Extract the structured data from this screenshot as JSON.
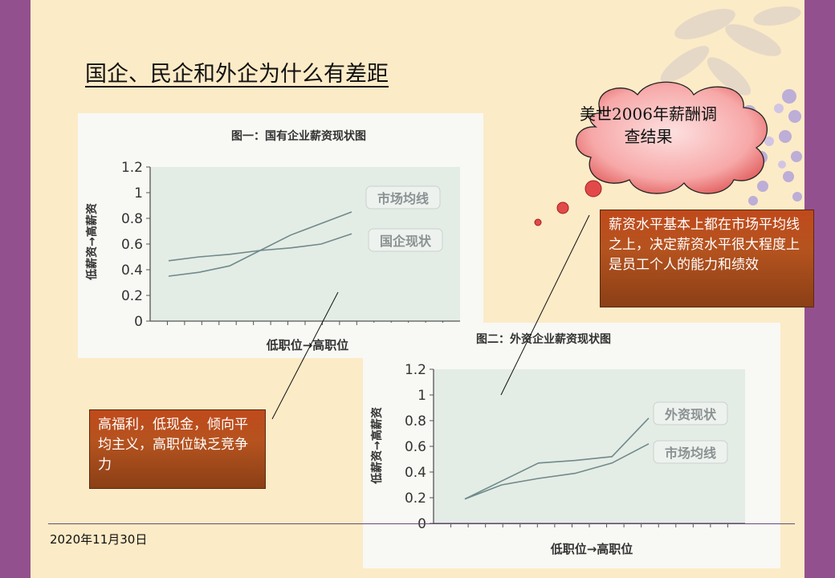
{
  "slide": {
    "title": "国企、民企和外企为什么有差距",
    "footer_date": "2020年11月30日",
    "cloud_text": "美世2006年薪酬调查结果",
    "callout_foreign": "薪资水平基本上都在市场平均线之上，决定薪资水平很大程度上是员工个人的能力和绩效",
    "callout_state": "高福利，低现金，倾向平均主义，高职位缺乏竞争力"
  },
  "colors": {
    "background": "#fcebc7",
    "border": "#93508f",
    "callout": "#b5531f",
    "cloud": "#f08080",
    "chart_bg": "#e4ece6"
  },
  "chart_data": [
    {
      "type": "line",
      "title": "图一：国有企业薪资现状图",
      "xlabel": "低职位→高职位",
      "ylabel": "低薪资→高薪资",
      "ylim": [
        0,
        1.2
      ],
      "yticks": [
        "0",
        "0.2",
        "0.4",
        "0.6",
        "0.8",
        "1",
        "1.2"
      ],
      "grid": false,
      "x": [
        1,
        2,
        3,
        4,
        5,
        6,
        7
      ],
      "series": [
        {
          "name": "市场均线",
          "values": [
            0.35,
            0.38,
            0.43,
            0.55,
            0.67,
            0.76,
            0.85
          ]
        },
        {
          "name": "国企现状",
          "values": [
            0.47,
            0.5,
            0.52,
            0.55,
            0.57,
            0.6,
            0.68
          ]
        }
      ]
    },
    {
      "type": "line",
      "title": "图二：外资企业薪资现状图",
      "xlabel": "低职位→高职位",
      "ylabel": "低薪资→高薪资",
      "ylim": [
        0,
        1.2
      ],
      "yticks": [
        "0",
        "0.2",
        "0.4",
        "0.6",
        "0.8",
        "1",
        "1.2"
      ],
      "grid": false,
      "x": [
        1,
        2,
        3,
        4,
        5,
        6
      ],
      "series": [
        {
          "name": "外资现状",
          "values": [
            0.19,
            0.33,
            0.47,
            0.49,
            0.52,
            0.82
          ]
        },
        {
          "name": "市场均线",
          "values": [
            0.19,
            0.3,
            0.35,
            0.39,
            0.47,
            0.62
          ]
        }
      ]
    }
  ]
}
